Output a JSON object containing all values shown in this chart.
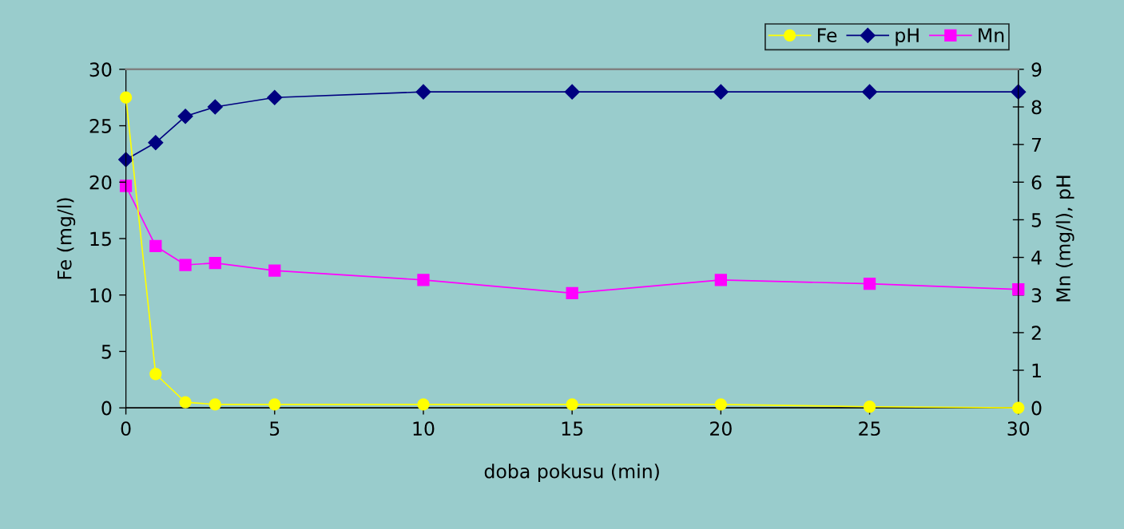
{
  "chart_data": {
    "type": "line",
    "xlabel": "doba pokusu (min)",
    "ylabel": "Fe (mg/l)",
    "y2label": "Mn (mg/l), pH",
    "x": [
      0,
      1,
      2,
      3,
      5,
      10,
      15,
      20,
      25,
      30
    ],
    "xlim": [
      0,
      30
    ],
    "xticks": [
      0,
      5,
      10,
      15,
      20,
      25,
      30
    ],
    "ylim": [
      0,
      30
    ],
    "yticks": [
      0,
      5,
      10,
      15,
      20,
      25,
      30
    ],
    "y2lim": [
      0,
      9
    ],
    "y2ticks": [
      0,
      1,
      2,
      3,
      4,
      5,
      6,
      7,
      8,
      9
    ],
    "legend": "top right",
    "grid": false,
    "line_style": "solid",
    "series": [
      {
        "name": "Fe",
        "color": "#ffff00",
        "marker": "circle",
        "values": [
          27.5,
          3.0,
          0.5,
          0.3,
          0.3,
          0.3,
          0.3,
          0.3,
          0.1,
          0.0
        ]
      },
      {
        "name": "pH",
        "color": "#000080",
        "marker": "diamond",
        "axis": "y2",
        "values": [
          6.6,
          7.05,
          7.75,
          8.0,
          8.25,
          8.4,
          8.4,
          8.4,
          8.4,
          8.4
        ]
      },
      {
        "name": "Mn",
        "color": "#ff00ff",
        "marker": "square",
        "axis": "y2",
        "values": [
          5.9,
          4.3,
          3.8,
          3.85,
          3.65,
          3.4,
          3.05,
          3.4,
          3.3,
          3.15
        ]
      }
    ]
  }
}
